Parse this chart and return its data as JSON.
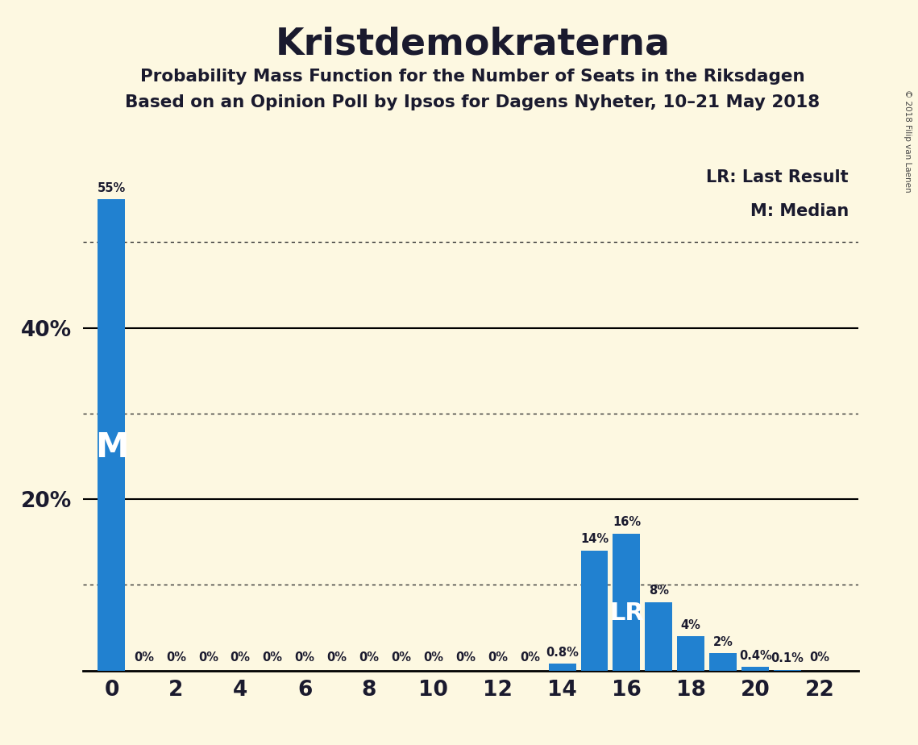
{
  "title": "Kristdemokraterna",
  "subtitle1": "Probability Mass Function for the Number of Seats in the Riksdagen",
  "subtitle2": "Based on an Opinion Poll by Ipsos for Dagens Nyheter, 10–21 May 2018",
  "copyright": "© 2018 Filip van Laenen",
  "legend_lr": "LR: Last Result",
  "legend_m": "M: Median",
  "background_color": "#fdf8e1",
  "bar_color": "#2181d0",
  "text_color": "#1a1a2e",
  "seats": [
    0,
    1,
    2,
    3,
    4,
    5,
    6,
    7,
    8,
    9,
    10,
    11,
    12,
    13,
    14,
    15,
    16,
    17,
    18,
    19,
    20,
    21,
    22
  ],
  "probabilities": [
    55,
    0,
    0,
    0,
    0,
    0,
    0,
    0,
    0,
    0,
    0,
    0,
    0,
    0,
    0.8,
    14,
    16,
    8,
    4,
    2,
    0.4,
    0.1,
    0
  ],
  "labels": [
    "55%",
    "0%",
    "0%",
    "0%",
    "0%",
    "0%",
    "0%",
    "0%",
    "0%",
    "0%",
    "0%",
    "0%",
    "0%",
    "0%",
    "0.8%",
    "14%",
    "16%",
    "8%",
    "4%",
    "2%",
    "0.4%",
    "0.1%",
    "0%"
  ],
  "median_seat": 0,
  "lr_seat": 16,
  "ylim_max": 60,
  "solid_lines": [
    20,
    40
  ],
  "dotted_lines": [
    10,
    30,
    50
  ],
  "xticks": [
    0,
    2,
    4,
    6,
    8,
    10,
    12,
    14,
    16,
    18,
    20,
    22
  ],
  "ytick_labels": {
    "20": "20%",
    "40": "40%"
  }
}
